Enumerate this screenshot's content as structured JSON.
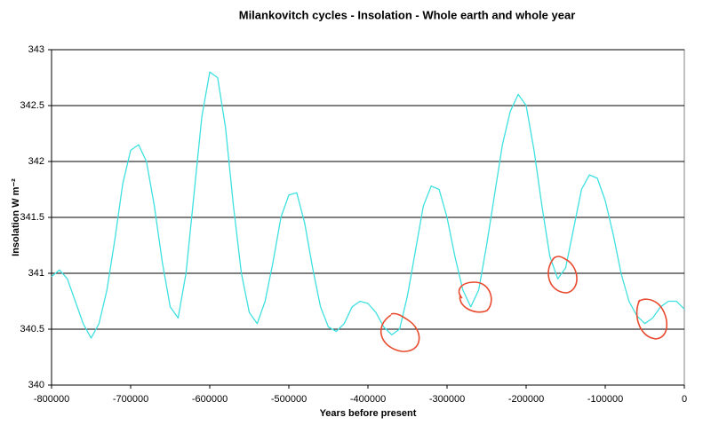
{
  "chart_data": {
    "type": "line",
    "title": "Milankovitch cycles - Insolation - Whole earth and whole year",
    "xlabel": "Years before present",
    "ylabel": "Insolation W m⁻²",
    "x": [
      -800000,
      -790000,
      -780000,
      -770000,
      -760000,
      -750000,
      -740000,
      -730000,
      -720000,
      -710000,
      -700000,
      -690000,
      -680000,
      -670000,
      -660000,
      -650000,
      -640000,
      -630000,
      -620000,
      -610000,
      -600000,
      -590000,
      -580000,
      -570000,
      -560000,
      -550000,
      -540000,
      -530000,
      -520000,
      -510000,
      -500000,
      -490000,
      -480000,
      -470000,
      -460000,
      -450000,
      -440000,
      -430000,
      -420000,
      -410000,
      -400000,
      -390000,
      -380000,
      -370000,
      -360000,
      -350000,
      -340000,
      -330000,
      -320000,
      -310000,
      -300000,
      -290000,
      -280000,
      -270000,
      -260000,
      -250000,
      -240000,
      -230000,
      -220000,
      -210000,
      -200000,
      -190000,
      -180000,
      -170000,
      -160000,
      -150000,
      -140000,
      -130000,
      -120000,
      -110000,
      -100000,
      -90000,
      -80000,
      -70000,
      -60000,
      -50000,
      -40000,
      -30000,
      -20000,
      -10000,
      0
    ],
    "series": [
      {
        "name": "Insolation",
        "color": "#3fe0e0",
        "values": [
          340.97,
          341.03,
          340.95,
          340.75,
          340.55,
          340.42,
          340.55,
          340.85,
          341.3,
          341.8,
          342.1,
          342.15,
          342.0,
          341.6,
          341.1,
          340.7,
          340.6,
          341.0,
          341.7,
          342.4,
          342.8,
          342.75,
          342.3,
          341.6,
          341.0,
          340.65,
          340.55,
          340.75,
          341.1,
          341.5,
          341.7,
          341.72,
          341.45,
          341.05,
          340.7,
          340.52,
          340.48,
          340.55,
          340.7,
          340.75,
          340.73,
          340.65,
          340.52,
          340.45,
          340.5,
          340.8,
          341.2,
          341.6,
          341.78,
          341.75,
          341.5,
          341.15,
          340.85,
          340.7,
          340.85,
          341.25,
          341.7,
          342.15,
          342.45,
          342.6,
          342.5,
          342.1,
          341.6,
          341.15,
          340.95,
          341.05,
          341.4,
          341.75,
          341.88,
          341.85,
          341.65,
          341.35,
          341.0,
          340.75,
          340.62,
          340.55,
          340.6,
          340.7,
          340.75,
          340.75,
          340.68
        ]
      }
    ],
    "xlim": [
      -800000,
      0
    ],
    "xticks": [
      -800000,
      -700000,
      -600000,
      -500000,
      -400000,
      -300000,
      -200000,
      -100000,
      0
    ],
    "ylim": [
      340,
      343
    ],
    "yticks": [
      340,
      340.5,
      341,
      341.5,
      342,
      342.5,
      343
    ],
    "grid": true
  }
}
